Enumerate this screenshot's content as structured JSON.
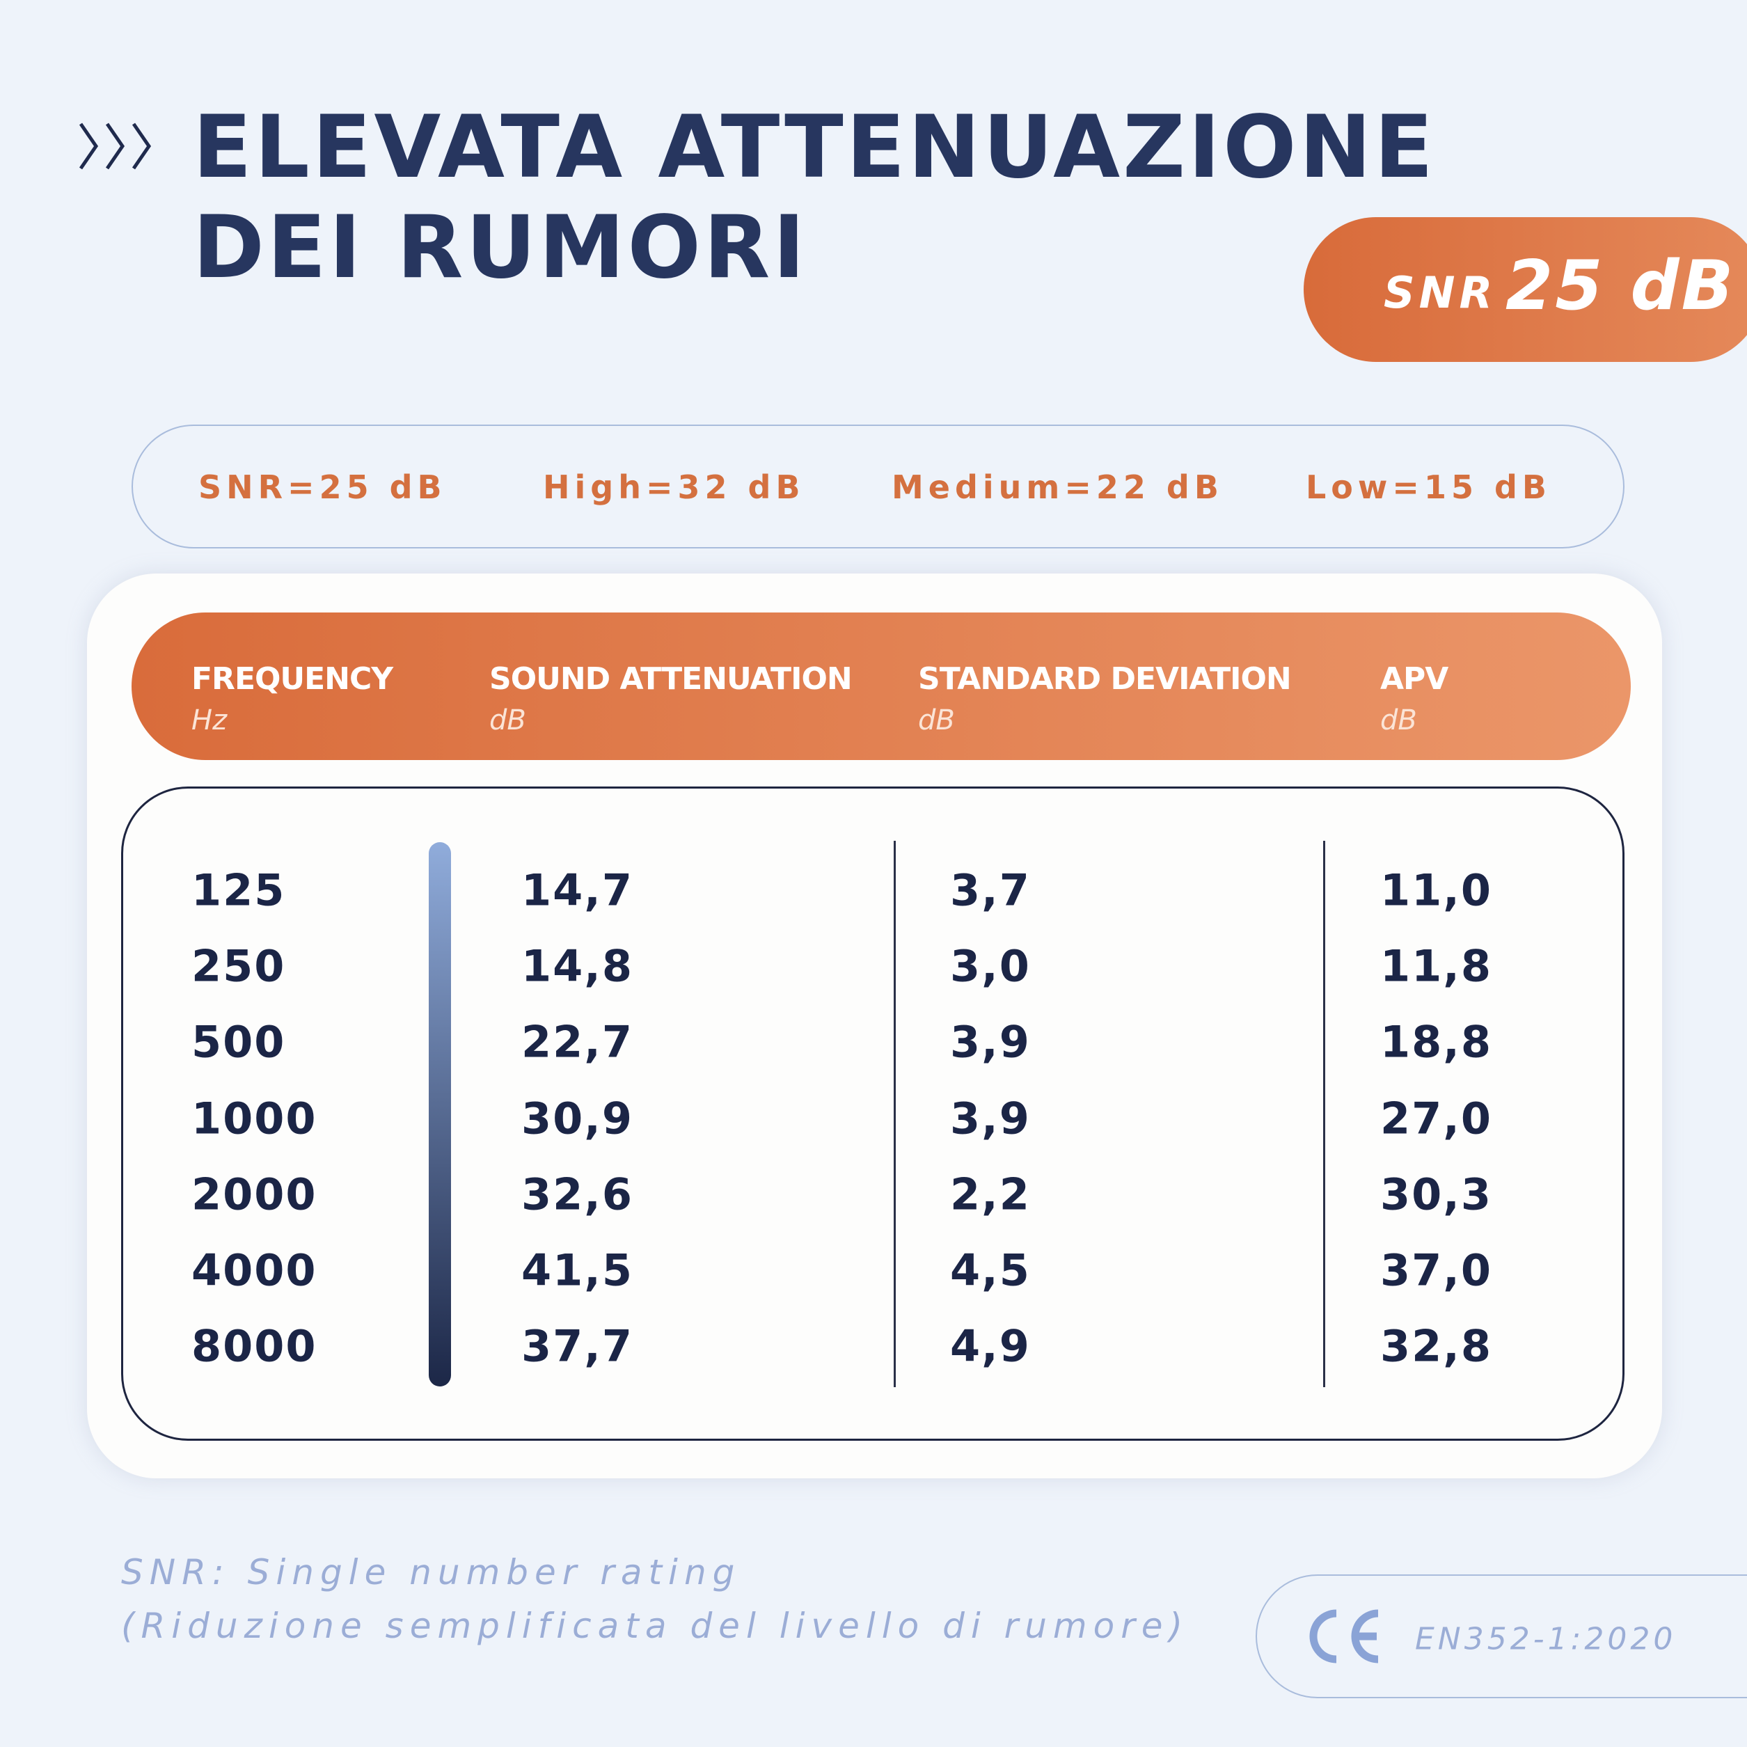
{
  "header": {
    "title_lines": [
      "ELEVATA ATTENUAZIONE",
      "DEI RUMORI"
    ],
    "badge": {
      "label": "SNR",
      "value": "25 dB"
    }
  },
  "summary": [
    "SNR=25 dB",
    "High=32 dB",
    "Medium=22 dB",
    "Low=15 dB"
  ],
  "table": {
    "columns": [
      {
        "label": "FREQUENCY",
        "unit": "Hz"
      },
      {
        "label": "SOUND ATTENUATION",
        "unit": "dB"
      },
      {
        "label": "STANDARD DEVIATION",
        "unit": "dB"
      },
      {
        "label": "APV",
        "unit": "dB"
      }
    ],
    "rows": [
      [
        "125",
        "14,7",
        "3,7",
        "11,0"
      ],
      [
        "250",
        "14,8",
        "3,0",
        "11,8"
      ],
      [
        "500",
        "22,7",
        "3,9",
        "18,8"
      ],
      [
        "1000",
        "30,9",
        "3,9",
        "27,0"
      ],
      [
        "2000",
        "32,6",
        "2,2",
        "30,3"
      ],
      [
        "4000",
        "41,5",
        "4,5",
        "37,0"
      ],
      [
        "8000",
        "37,7",
        "4,9",
        "32,8"
      ]
    ]
  },
  "footnote": [
    "SNR: Single number rating",
    "(Riduzione semplificata del livello di rumore)"
  ],
  "certification": "EN352-1:2020"
}
